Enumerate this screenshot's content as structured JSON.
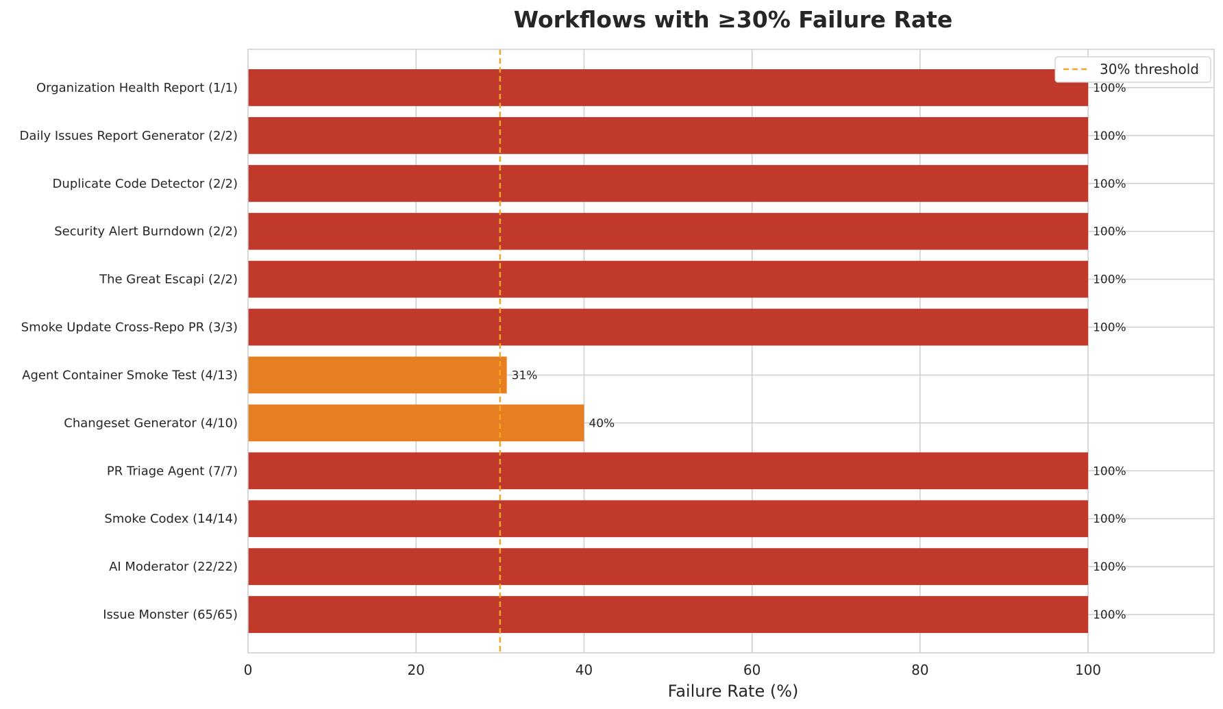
{
  "chart_data": {
    "type": "bar",
    "orientation": "horizontal",
    "title": "Workflows with ≥30% Failure Rate",
    "xlabel": "Failure Rate (%)",
    "ylabel": "",
    "xlim": [
      0,
      115
    ],
    "xticks": [
      0,
      20,
      40,
      60,
      80,
      100
    ],
    "grid": true,
    "categories": [
      "Organization Health Report (1/1)",
      "Daily Issues Report Generator (2/2)",
      "Duplicate Code Detector (2/2)",
      "Security Alert Burndown (2/2)",
      "The Great Escapi (2/2)",
      "Smoke Update Cross-Repo PR (3/3)",
      "Agent Container Smoke Test (4/13)",
      "Changeset Generator (4/10)",
      "PR Triage Agent (7/7)",
      "Smoke Codex (14/14)",
      "AI Moderator (22/22)",
      "Issue Monster (65/65)"
    ],
    "values": [
      100,
      100,
      100,
      100,
      100,
      100,
      30.8,
      40,
      100,
      100,
      100,
      100
    ],
    "value_labels": [
      "100%",
      "100%",
      "100%",
      "100%",
      "100%",
      "100%",
      "31%",
      "40%",
      "100%",
      "100%",
      "100%",
      "100%"
    ],
    "bar_colors": [
      "#c0392b",
      "#c0392b",
      "#c0392b",
      "#c0392b",
      "#c0392b",
      "#c0392b",
      "#e67e22",
      "#e67e22",
      "#c0392b",
      "#c0392b",
      "#c0392b",
      "#c0392b"
    ],
    "threshold": {
      "value": 30,
      "label": "30% threshold",
      "color": "#f5a623",
      "style": "dashed"
    },
    "legend_position": "top-right"
  }
}
